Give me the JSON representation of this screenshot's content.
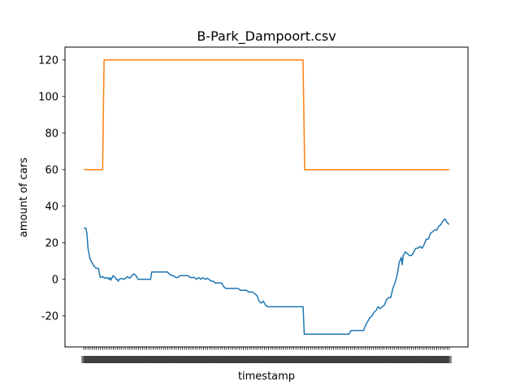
{
  "chart_data": {
    "type": "line",
    "title": "B-Park_Dampoort.csv",
    "xlabel": "timestamp",
    "ylabel": "amount of cars",
    "ylim": [
      -37,
      127
    ],
    "yticks": [
      -20,
      0,
      20,
      40,
      60,
      80,
      100,
      120
    ],
    "grid": false,
    "legend": "none",
    "x_tick_count": 175,
    "series": [
      {
        "color": "#ff7f0e",
        "values": [
          [
            0,
            60
          ],
          [
            9,
            60
          ],
          [
            9.7,
            120
          ],
          [
            105,
            120
          ],
          [
            105.8,
            60
          ],
          [
            175,
            60
          ]
        ]
      },
      {
        "color": "#1f77b4",
        "values": [
          [
            0,
            28
          ],
          [
            1,
            28
          ],
          [
            1.5,
            25
          ],
          [
            2,
            17
          ],
          [
            3,
            11
          ],
          [
            4,
            9
          ],
          [
            5,
            7
          ],
          [
            6,
            6
          ],
          [
            7,
            6
          ],
          [
            7.5,
            3
          ],
          [
            8,
            1
          ],
          [
            9,
            1.5
          ],
          [
            10,
            0.5
          ],
          [
            11,
            1
          ],
          [
            12,
            0
          ],
          [
            12.5,
            1
          ],
          [
            13,
            -0.5
          ],
          [
            14,
            2
          ],
          [
            15,
            1
          ],
          [
            15.5,
            0
          ],
          [
            16,
            0
          ],
          [
            16.5,
            -1
          ],
          [
            17,
            0
          ],
          [
            18,
            0.5
          ],
          [
            19,
            0
          ],
          [
            20,
            0.5
          ],
          [
            21,
            1.5
          ],
          [
            22,
            0.5
          ],
          [
            23,
            2
          ],
          [
            24,
            3
          ],
          [
            25,
            2
          ],
          [
            26,
            0
          ],
          [
            28,
            0
          ],
          [
            30,
            0
          ],
          [
            32,
            0
          ],
          [
            32.5,
            4
          ],
          [
            36,
            4
          ],
          [
            40,
            4
          ],
          [
            41,
            3
          ],
          [
            42,
            2
          ],
          [
            43,
            2
          ],
          [
            44,
            1
          ],
          [
            45,
            1
          ],
          [
            46,
            2
          ],
          [
            48,
            2
          ],
          [
            50,
            2
          ],
          [
            51,
            1
          ],
          [
            53,
            1
          ],
          [
            54,
            0
          ],
          [
            55,
            1
          ],
          [
            56,
            0
          ],
          [
            57,
            1
          ],
          [
            58,
            0
          ],
          [
            59,
            0.5
          ],
          [
            60,
            0
          ],
          [
            61,
            -1
          ],
          [
            62,
            -1
          ],
          [
            63,
            -2
          ],
          [
            64,
            -2
          ],
          [
            66,
            -2
          ],
          [
            67,
            -4
          ],
          [
            68,
            -5
          ],
          [
            72,
            -5
          ],
          [
            74,
            -5
          ],
          [
            75,
            -6
          ],
          [
            78,
            -6
          ],
          [
            79,
            -7
          ],
          [
            81,
            -7
          ],
          [
            82,
            -8
          ],
          [
            83,
            -9
          ],
          [
            84,
            -12
          ],
          [
            85,
            -13
          ],
          [
            86,
            -12
          ],
          [
            87,
            -14
          ],
          [
            88,
            -15
          ],
          [
            95,
            -15
          ],
          [
            105,
            -15
          ],
          [
            105.6,
            -30
          ],
          [
            115,
            -30
          ],
          [
            127,
            -30
          ],
          [
            128,
            -28
          ],
          [
            134,
            -28
          ],
          [
            135,
            -25
          ],
          [
            136,
            -23
          ],
          [
            137,
            -21
          ],
          [
            138,
            -20
          ],
          [
            139,
            -18
          ],
          [
            140,
            -17
          ],
          [
            141,
            -15
          ],
          [
            142,
            -16
          ],
          [
            143,
            -15
          ],
          [
            144,
            -14
          ],
          [
            145,
            -11
          ],
          [
            146,
            -10
          ],
          [
            147,
            -10
          ],
          [
            148,
            -5
          ],
          [
            149,
            -2
          ],
          [
            150,
            2
          ],
          [
            150.5,
            5
          ],
          [
            151,
            9
          ],
          [
            152,
            12
          ],
          [
            152.5,
            8
          ],
          [
            153,
            13
          ],
          [
            154,
            15
          ],
          [
            155,
            14
          ],
          [
            156,
            13
          ],
          [
            157,
            13
          ],
          [
            158,
            15
          ],
          [
            159,
            17
          ],
          [
            160,
            17
          ],
          [
            161,
            18
          ],
          [
            162,
            17
          ],
          [
            163,
            19
          ],
          [
            164,
            22
          ],
          [
            165,
            22
          ],
          [
            166,
            25
          ],
          [
            167,
            26
          ],
          [
            168,
            27
          ],
          [
            169,
            27
          ],
          [
            170,
            29
          ],
          [
            171,
            30
          ],
          [
            172,
            32
          ],
          [
            173,
            33
          ],
          [
            173.5,
            32
          ],
          [
            174,
            31
          ],
          [
            175,
            30
          ]
        ]
      }
    ]
  }
}
